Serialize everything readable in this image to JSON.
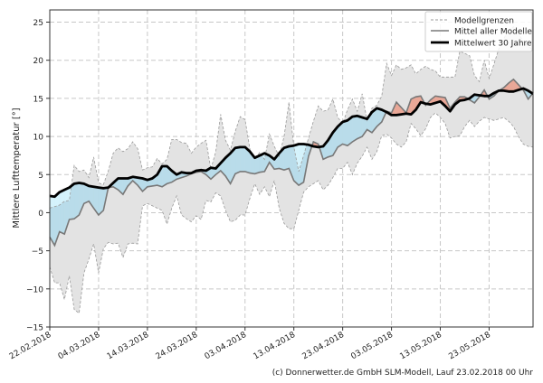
{
  "chart_data": {
    "type": "line",
    "title": "",
    "xlabel": "",
    "ylabel": "Mittlere Lufttemperatur [°]",
    "ylim": [
      -15,
      26.6
    ],
    "yticks": [
      -15,
      -10,
      -5,
      0,
      5,
      10,
      15,
      20,
      25
    ],
    "xtick_labels": [
      "22.02.2018",
      "04.03.2018",
      "14.03.2018",
      "24.03.2018",
      "03.04.2018",
      "13.04.2018",
      "23.04.2018",
      "03.05.2018",
      "13.05.2018",
      "23.05.2018"
    ],
    "xlim": [
      "22.02.2018",
      "01.06.2018"
    ],
    "grid": true,
    "legend_position": "top-right",
    "legend": [
      "Modellgrenzen",
      "Mittel aller Modelle",
      "Mittelwert 30 Jahre"
    ],
    "colors": {
      "band": "#e3e3e3",
      "band_edge": "#9a9a9a",
      "model_mean": "#787878",
      "climate_mean": "#000000",
      "colder": "#b9dcea",
      "warmer": "#e9a797",
      "all_colder": "#d5f3fc"
    },
    "x": [
      "22.02.2018",
      "23.02.2018",
      "24.02.2018",
      "25.02.2018",
      "26.02.2018",
      "27.02.2018",
      "28.02.2018",
      "01.03.2018",
      "02.03.2018",
      "03.03.2018",
      "04.03.2018",
      "05.03.2018",
      "06.03.2018",
      "07.03.2018",
      "08.03.2018",
      "09.03.2018",
      "10.03.2018",
      "11.03.2018",
      "12.03.2018",
      "13.03.2018",
      "14.03.2018",
      "15.03.2018",
      "16.03.2018",
      "17.03.2018",
      "18.03.2018",
      "19.03.2018",
      "20.03.2018",
      "21.03.2018",
      "22.03.2018",
      "23.03.2018",
      "24.03.2018",
      "25.03.2018",
      "26.03.2018",
      "27.03.2018",
      "28.03.2018",
      "29.03.2018",
      "30.03.2018",
      "31.03.2018",
      "01.04.2018",
      "02.04.2018",
      "03.04.2018",
      "04.04.2018",
      "05.04.2018",
      "06.04.2018",
      "07.04.2018",
      "08.04.2018",
      "09.04.2018",
      "10.04.2018",
      "11.04.2018",
      "12.04.2018",
      "13.04.2018",
      "14.04.2018",
      "15.04.2018",
      "16.04.2018",
      "17.04.2018",
      "18.04.2018",
      "19.04.2018",
      "20.04.2018",
      "21.04.2018",
      "22.04.2018",
      "23.04.2018",
      "24.04.2018",
      "25.04.2018",
      "26.04.2018",
      "27.04.2018",
      "28.04.2018",
      "29.04.2018",
      "30.04.2018",
      "01.05.2018",
      "02.05.2018",
      "03.05.2018",
      "04.05.2018",
      "05.05.2018",
      "06.05.2018",
      "07.05.2018",
      "08.05.2018",
      "09.05.2018",
      "10.05.2018",
      "11.05.2018",
      "12.05.2018",
      "13.05.2018",
      "14.05.2018",
      "15.05.2018",
      "16.05.2018",
      "17.05.2018",
      "18.05.2018",
      "19.05.2018",
      "20.05.2018",
      "21.05.2018",
      "22.05.2018",
      "23.05.2018",
      "24.05.2018",
      "25.05.2018",
      "26.05.2018",
      "27.05.2018",
      "28.05.2018",
      "29.05.2018",
      "30.05.2018",
      "31.05.2018",
      "01.06.2018"
    ],
    "series": [
      {
        "name": "Modellgrenzen",
        "role": "upper",
        "values": [
          0.6,
          0.8,
          1.0,
          1.5,
          1.6,
          6.2,
          5.4,
          5.6,
          4.6,
          7.3,
          3.9,
          3.7,
          5.5,
          7.8,
          8.5,
          8.0,
          8.4,
          9.3,
          8.4,
          5.6,
          5.9,
          6.0,
          7.1,
          6.4,
          7.0,
          9.6,
          9.6,
          9.2,
          9.1,
          7.8,
          8.6,
          9.1,
          9.5,
          5.7,
          8.0,
          12.9,
          9.5,
          8.2,
          10.7,
          12.6,
          12.2,
          8.3,
          7.0,
          7.9,
          7.0,
          10.3,
          8.7,
          7.4,
          10.0,
          14.5,
          8.6,
          5.4,
          7.5,
          9.8,
          12.0,
          14.0,
          13.3,
          13.5,
          14.9,
          12.5,
          11.7,
          13.5,
          14.9,
          13.3,
          15.6,
          12.1,
          13.7,
          14.1,
          15.3,
          19.6,
          18.0,
          19.4,
          18.8,
          19.0,
          19.4,
          18.2,
          18.8,
          19.2,
          18.8,
          18.6,
          17.8,
          17.8,
          17.8,
          17.8,
          21.2,
          20.9,
          20.6,
          18.0,
          17.2,
          20.0,
          17.6,
          19.5,
          21.5,
          22.8,
          24.0,
          24.4,
          23.5,
          22.5,
          21.8,
          21.4
        ]
      },
      {
        "name": "Modellgrenzen",
        "role": "lower",
        "values": [
          -7.1,
          -9.2,
          -9.2,
          -11.4,
          -8.3,
          -12.7,
          -13.2,
          -7.9,
          -6.1,
          -4.1,
          -7.9,
          -4.7,
          -3.9,
          -4.1,
          -4.0,
          -5.9,
          -4.1,
          -4.0,
          -4.1,
          0.9,
          1.2,
          0.9,
          0.6,
          0.3,
          -1.5,
          0.6,
          2.2,
          -0.3,
          -0.8,
          -1.2,
          -0.4,
          -0.9,
          1.6,
          1.4,
          2.6,
          2.2,
          0.3,
          -1.2,
          -1.0,
          -0.3,
          -0.3,
          1.9,
          3.8,
          2.4,
          3.4,
          2.1,
          4.2,
          0.6,
          -1.4,
          -2.1,
          -2.1,
          0.3,
          2.7,
          3.4,
          3.8,
          4.2,
          3.0,
          3.6,
          4.6,
          5.8,
          5.8,
          6.6,
          5.0,
          6.5,
          7.4,
          8.6,
          7.0,
          8.0,
          10.1,
          10.3,
          9.8,
          9.0,
          8.6,
          9.3,
          11.7,
          11.0,
          10.1,
          11.0,
          12.5,
          13.1,
          12.5,
          11.7,
          9.8,
          10.0,
          10.1,
          11.3,
          12.1,
          11.3,
          12.0,
          12.5,
          12.3,
          12.1,
          12.3,
          12.5,
          12.0,
          11.3,
          10.0,
          9.0,
          8.7,
          8.6
        ]
      },
      {
        "name": "Mittel aller Modelle",
        "role": "model_mean",
        "values": [
          -3.2,
          -4.3,
          -2.5,
          -2.8,
          -0.9,
          -0.8,
          -0.3,
          1.2,
          1.5,
          0.6,
          -0.3,
          0.3,
          3.3,
          3.4,
          3.0,
          2.4,
          3.5,
          4.2,
          3.6,
          2.8,
          3.4,
          3.5,
          3.6,
          3.4,
          3.8,
          4.0,
          4.4,
          4.6,
          4.8,
          5.1,
          5.3,
          5.4,
          5.0,
          4.4,
          5.0,
          5.5,
          4.8,
          3.8,
          5.1,
          5.4,
          5.4,
          5.2,
          5.1,
          5.3,
          5.4,
          6.6,
          5.7,
          5.8,
          5.6,
          5.8,
          4.2,
          3.6,
          4.0,
          7.4,
          9.3,
          9.0,
          7.0,
          7.3,
          7.5,
          8.6,
          9.0,
          8.8,
          9.3,
          9.7,
          10.0,
          10.9,
          10.5,
          11.3,
          11.9,
          13.3,
          13.1,
          14.5,
          13.8,
          13.1,
          14.9,
          15.2,
          15.3,
          14.1,
          14.8,
          15.3,
          15.2,
          15.1,
          13.7,
          14.5,
          15.2,
          15.2,
          14.8,
          14.4,
          15.2,
          16.1,
          14.9,
          15.3,
          16.0,
          16.4,
          17.0,
          17.5,
          16.8,
          16.1,
          14.9,
          15.7
        ]
      },
      {
        "name": "Mittelwert 30 Jahre",
        "role": "climate_mean",
        "values": [
          2.2,
          2.1,
          2.7,
          3.0,
          3.3,
          3.8,
          3.9,
          3.8,
          3.5,
          3.4,
          3.3,
          3.2,
          3.3,
          3.9,
          4.5,
          4.5,
          4.5,
          4.7,
          4.6,
          4.5,
          4.3,
          4.5,
          5.0,
          6.1,
          6.1,
          5.5,
          5.0,
          5.3,
          5.2,
          5.2,
          5.5,
          5.6,
          5.5,
          5.9,
          5.8,
          6.5,
          7.2,
          7.8,
          8.5,
          8.6,
          8.6,
          8.0,
          7.2,
          7.5,
          7.8,
          7.5,
          7.0,
          7.8,
          8.5,
          8.7,
          8.8,
          9.0,
          9.0,
          8.9,
          8.7,
          8.6,
          8.7,
          9.5,
          10.5,
          11.3,
          11.9,
          12.1,
          12.6,
          12.7,
          12.5,
          12.3,
          13.2,
          13.7,
          13.5,
          13.2,
          12.8,
          12.8,
          12.9,
          13.0,
          12.9,
          13.5,
          14.5,
          14.3,
          14.2,
          14.4,
          14.6,
          14.0,
          13.3,
          14.2,
          14.7,
          14.8,
          15.0,
          15.5,
          15.4,
          15.3,
          15.3,
          15.7,
          16.0,
          16.0,
          15.9,
          15.9,
          16.1,
          16.3,
          16.0,
          15.6
        ]
      }
    ]
  },
  "footer": {
    "copyright": "(c) Donnerwetter.de GmbH SLM-Modell, Lauf 23.02.2018 00 Uhr"
  }
}
